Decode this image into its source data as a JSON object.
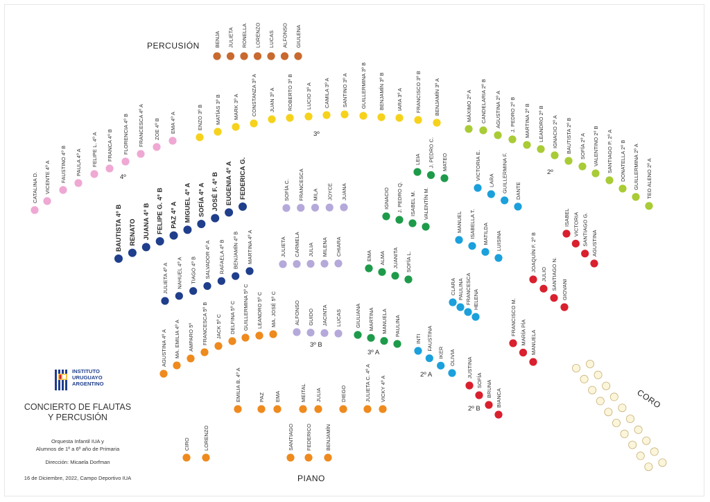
{
  "sections": {
    "percussion": "PERCUSIÓN",
    "piano": "PIANO",
    "coro": "CORO"
  },
  "group_labels": {
    "g4": "4º",
    "g3": "3º",
    "g2": "2º",
    "g3b": "3º B",
    "g3a": "3º A",
    "g2a": "2º A",
    "g2b": "2º B"
  },
  "colors": {
    "percussion": "#C8692F",
    "pink": "#EFA8D3",
    "yellow": "#F6D21C",
    "lime": "#A9CB36",
    "navy": "#1F3E8C",
    "lavender": "#B5A9DA",
    "green": "#1E9B4A",
    "cyan": "#1BA0DC",
    "red": "#D9202E",
    "orange": "#EE8A1E",
    "choir": "#FBF5DA",
    "choir_outline": "#C8B27A"
  },
  "logo": {
    "icon": "iua-logo-icon",
    "line1": "INSTITUTO",
    "line2": "URUGUAYO",
    "line3": "ARGENTINO"
  },
  "title": {
    "line1": "CONCIERTO DE FLAUTAS",
    "line2": "Y PERCUSIÓN"
  },
  "subtitle": {
    "line1": "Orquesta Infantil IUA y",
    "line2": "Alumnos de 1º a 6º año de Primaria"
  },
  "director": "Dirección: Micaela Dorfman",
  "date_place": "16 de Diciembre, 2022, Campo Deportivo IUA",
  "groups": {
    "percussion": [
      "BENJA",
      "JULIETA",
      "RONELLA",
      "LORENZO",
      "LUCAS",
      "ALFONSO",
      "GIULENA"
    ],
    "pink_4": [
      "CATALINA D.",
      "VICENTE 4º A",
      "FAUSTINO 4º B",
      "PAULA 4º A",
      "FELIPE L. 4º A",
      "FRANCA 4º B",
      "FLORENCIA 4º B",
      "FRANCESCA 4º A",
      "ZOE 4º B",
      "EMA 4º A"
    ],
    "yellow_3": [
      "ENZO 3º B",
      "MATÍAS 3º B",
      "MARK 3º A",
      "CONSTANZA 3º A",
      "JUAN 3º A",
      "ROBERTO 3º B",
      "LUCIO 3º A",
      "CAMILA 3º A",
      "SANTINO 3º A",
      "GUILLERMINA 3º B",
      "BENJAMÍN 3º B",
      "IARA 3º A",
      "FRANCISCO 3º B",
      "BENJAMÍN 3º A"
    ],
    "lime_2": [
      "MÁXIMO 2º A",
      "CANDELARIA 2º B",
      "AGUSTINA 2º A",
      "J. PEDRO 2º B",
      "MARTINA 2º B",
      "LEANDRO 2º B",
      "IGNACIO 2º A",
      "BAUTISTA 2º B",
      "SOFÍA 2º A",
      "VALENTINO 2º B",
      "SANTIAGO P. 2º A",
      "DONATELLA 2º B",
      "GUILLERMINA 2º A",
      "TEO ALENO 2º A"
    ],
    "navy_big": [
      "BAUTISTA 4º B",
      "RENATO",
      "JUANA 4º B",
      "FELIPE G. 4º B",
      "PAZ 4º A",
      "MIGUEL 4º A",
      "SOFÍA 4º A",
      "JOSÉ F. 4º B",
      "EUGENIA 4º A",
      "FEDERICA G."
    ],
    "navy_small": [
      "JULIETA 4º A",
      "NAHUEL 4º A",
      "TIAGO 4º B",
      "SALVADOR 4º A",
      "RAFAELA 4º B",
      "BENJAMÍN 4º B",
      "MARTINA 4º A"
    ],
    "lav_1": [
      "SOFÍA C.",
      "FRANCESCA",
      "MILA",
      "JOYCE",
      "JUANA"
    ],
    "lav_2": [
      "JULIETA",
      "CARMELA",
      "JULIA",
      "MILENA",
      "CHIARA"
    ],
    "lav_3": [
      "ALFONSO",
      "GUIDO",
      "JACINTA",
      "LUCAS"
    ],
    "green_1": [
      "LEIA",
      "J. PEDRO C.",
      "MATEO"
    ],
    "green_2": [
      "IGNACIO",
      "J. PEDRO Q.",
      "ISABEL M.",
      "VALENTÍN M."
    ],
    "green_3": [
      "EMA",
      "ALMA",
      "JUANITA",
      "SOFÍA L."
    ],
    "green_4": [
      "GIULIANA",
      "MARTINA",
      "MANUELA",
      "PAULINA"
    ],
    "cyan_1": [
      "VICTORIA E.",
      "LARA",
      "GUILLERMINA F.",
      "DANTE"
    ],
    "cyan_2": [
      "MANUEL",
      "ISABELLA T.",
      "MATILDA",
      "LUISINA"
    ],
    "cyan_3": [
      "CLARA",
      "PAULINA",
      "FRANCESCA",
      "HELENA"
    ],
    "cyan_4": [
      "INTI",
      "FAUSTINA",
      "IKER",
      "OLIVIA"
    ],
    "red_1": [
      "ISABEL",
      "VICTORIA",
      "SANTIAGO G.",
      "AGUSTINA"
    ],
    "red_2": [
      "JOAQUÍN F. 2º B",
      "JULIO",
      "SANTIAGO N.",
      "GIOVANI"
    ],
    "red_3": [
      "FRANCISCO M.",
      "MARÍA PÍA",
      "MANUELA"
    ],
    "red_4": [
      "JUSTINA",
      "SOFÍA",
      "BRUNA",
      "BIANCA"
    ],
    "orange_arc": [
      "AGUSTINA 4º A",
      "MA. EMILIA 4º A",
      "AMPARO 5º",
      "FRANCESCA 5º B",
      "JACK 5º C",
      "DELFINA 5º C",
      "GUILLERMINA 5º C",
      "LEANDRO 5º C",
      "MA. JOSÉ 5º C"
    ],
    "orange_row": [
      "EMILIA B. 4º A",
      "PAZ",
      "EMA",
      "MEITAL",
      "JULIA",
      "DIEGO",
      "JULIETA C. 4º A",
      "VICKY 4º A"
    ],
    "orange_piano": [
      "CIRO",
      "LORENZO",
      "SANTIAGO",
      "FEDERICO",
      "BENJAMÍN"
    ],
    "coro_count": 20
  }
}
